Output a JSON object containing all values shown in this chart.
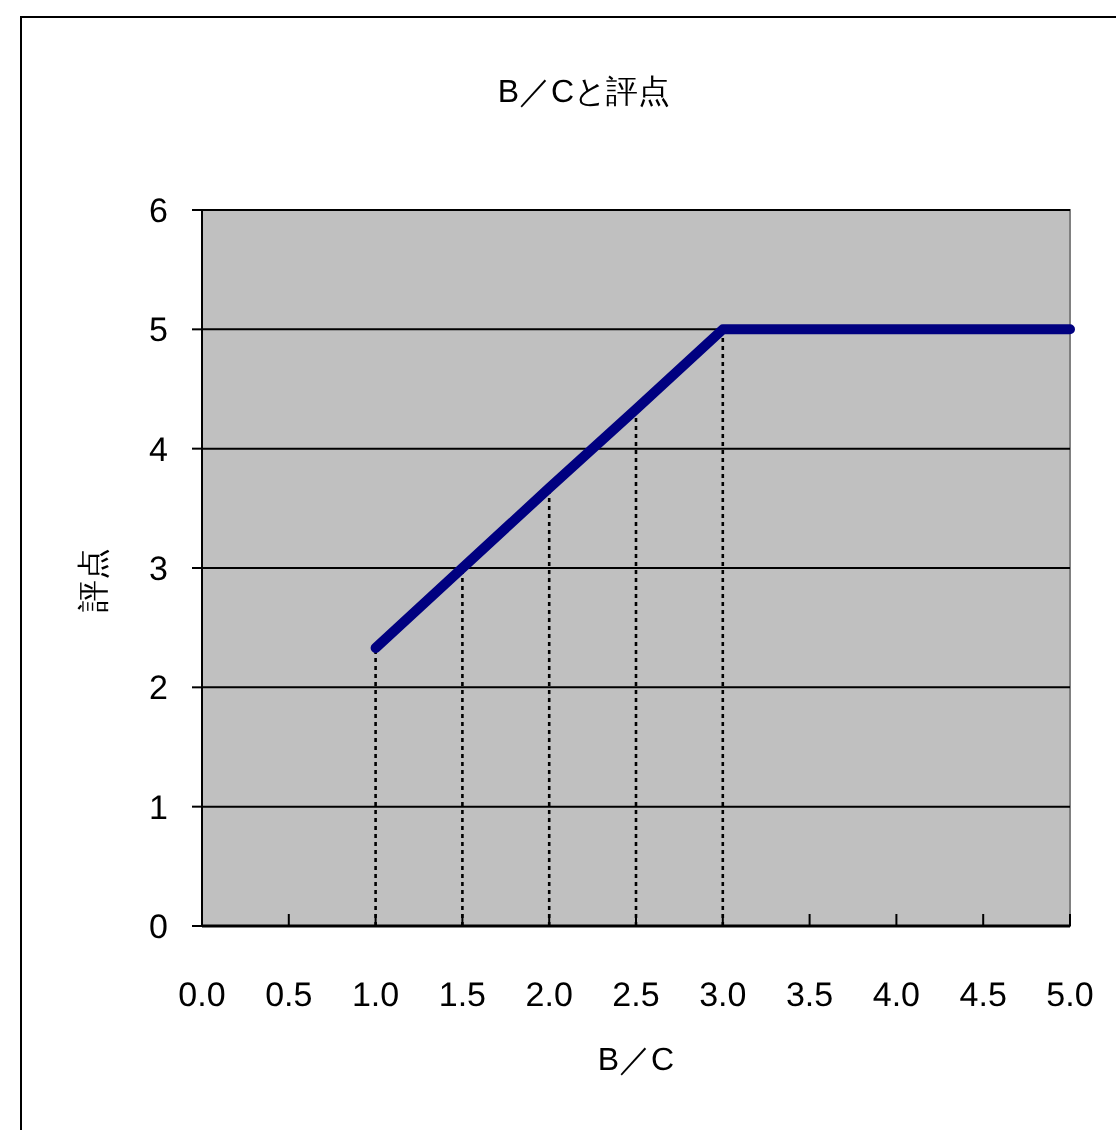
{
  "chart_data": {
    "type": "line",
    "title": "B／Cと評点",
    "xlabel": "B／C",
    "ylabel": "評点",
    "x": [
      1.0,
      1.5,
      2.0,
      2.5,
      3.0,
      5.0
    ],
    "series": [
      {
        "color": "#000080",
        "values": [
          2.33,
          3.0,
          3.67,
          4.33,
          5.0,
          5.0
        ]
      }
    ],
    "xlim": [
      0,
      5
    ],
    "xticks": [
      {
        "value": 0,
        "label": "0.0"
      },
      0.5,
      {
        "value": 1,
        "label": "1.0"
      },
      1.5,
      {
        "value": 2,
        "label": "2.0"
      },
      2.5,
      {
        "value": 3,
        "label": "3.0"
      },
      3.5,
      {
        "value": 4,
        "label": "4.0"
      },
      4.5,
      {
        "value": 5,
        "label": "5.0"
      }
    ],
    "ylim": [
      0,
      6
    ],
    "yticks": [
      0,
      1,
      2,
      3,
      4,
      5,
      6
    ],
    "grid": "y",
    "marker": "none",
    "line_style": "solid",
    "ref_lines": [
      {
        "axis": "x",
        "value": 1.0,
        "color": "#000000",
        "line_style": "dotted"
      },
      {
        "axis": "x",
        "value": 1.5,
        "color": "#000000",
        "line_style": "dotted"
      },
      {
        "axis": "x",
        "value": 2.0,
        "color": "#000000",
        "line_style": "dotted"
      },
      {
        "axis": "x",
        "value": 2.5,
        "color": "#000000",
        "line_style": "dotted"
      },
      {
        "axis": "x",
        "value": 3.0,
        "color": "#000000",
        "line_style": "dotted"
      }
    ]
  }
}
